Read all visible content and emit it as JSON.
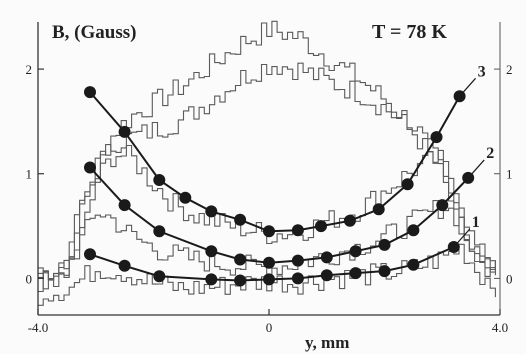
{
  "chart_data": {
    "type": "line",
    "ylabel": "B, (Gauss)",
    "xlabel": "y, mm",
    "annotation": "T = 78 K",
    "xlim": [
      -4.0,
      4.0
    ],
    "ylim": [
      -0.35,
      2.45
    ],
    "x_ticks": [
      {
        "value": -4.0,
        "label": "-4.0"
      },
      {
        "value": 0,
        "label": "0"
      },
      {
        "value": 4.0,
        "label": "4.0"
      }
    ],
    "y_ticks": [
      {
        "value": 0,
        "label": "0"
      },
      {
        "value": 1,
        "label": "1"
      },
      {
        "value": 2,
        "label": "2"
      }
    ],
    "colors": {
      "fit": "#1a1a1a",
      "measured": "#5a5a5a",
      "axes": "#333333"
    },
    "series": [
      {
        "name": "3",
        "kind": "fit",
        "points": [
          [
            -3.1,
            1.78
          ],
          [
            -2.5,
            1.4
          ],
          [
            -1.9,
            0.94
          ],
          [
            -1.45,
            0.77
          ],
          [
            -1.0,
            0.64
          ],
          [
            -0.5,
            0.56
          ],
          [
            0.0,
            0.45
          ],
          [
            0.5,
            0.46
          ],
          [
            0.9,
            0.5
          ],
          [
            1.4,
            0.55
          ],
          [
            1.9,
            0.66
          ],
          [
            2.4,
            0.9
          ],
          [
            2.9,
            1.35
          ],
          [
            3.3,
            1.74
          ]
        ]
      },
      {
        "name": "2",
        "kind": "fit",
        "points": [
          [
            -3.1,
            1.06
          ],
          [
            -2.5,
            0.7
          ],
          [
            -1.9,
            0.45
          ],
          [
            -1.0,
            0.26
          ],
          [
            -0.5,
            0.18
          ],
          [
            0.0,
            0.15
          ],
          [
            0.5,
            0.17
          ],
          [
            1.0,
            0.2
          ],
          [
            1.5,
            0.26
          ],
          [
            2.0,
            0.32
          ],
          [
            2.5,
            0.46
          ],
          [
            3.0,
            0.7
          ],
          [
            3.45,
            0.96
          ]
        ]
      },
      {
        "name": "1",
        "kind": "fit",
        "points": [
          [
            -3.1,
            0.23
          ],
          [
            -2.5,
            0.12
          ],
          [
            -1.9,
            0.02
          ],
          [
            -1.0,
            -0.01
          ],
          [
            -0.5,
            -0.02
          ],
          [
            0.0,
            -0.01
          ],
          [
            0.5,
            0.0
          ],
          [
            1.0,
            0.03
          ],
          [
            1.5,
            0.05
          ],
          [
            2.0,
            0.07
          ],
          [
            2.5,
            0.13
          ],
          [
            3.2,
            0.3
          ]
        ]
      },
      {
        "name": "",
        "kind": "measured",
        "points": [
          [
            -4.0,
            0.05
          ],
          [
            -3.7,
            0.08
          ],
          [
            -3.5,
            0.2
          ],
          [
            -3.3,
            0.7
          ],
          [
            -3.0,
            1.1
          ],
          [
            -2.7,
            1.4
          ],
          [
            -2.4,
            1.55
          ],
          [
            -2.0,
            1.68
          ],
          [
            -1.5,
            1.85
          ],
          [
            -1.0,
            2.05
          ],
          [
            -0.5,
            2.25
          ],
          [
            0.0,
            2.38
          ],
          [
            0.5,
            2.3
          ],
          [
            1.0,
            2.1
          ],
          [
            1.5,
            1.92
          ],
          [
            2.0,
            1.7
          ],
          [
            2.5,
            1.45
          ],
          [
            2.9,
            1.1
          ],
          [
            3.2,
            0.65
          ],
          [
            3.5,
            0.25
          ],
          [
            3.8,
            0.12
          ],
          [
            4.0,
            0.1
          ]
        ]
      },
      {
        "name": "",
        "kind": "measured",
        "points": [
          [
            -4.0,
            0.0
          ],
          [
            -3.7,
            0.03
          ],
          [
            -3.5,
            0.15
          ],
          [
            -3.3,
            0.6
          ],
          [
            -3.0,
            1.05
          ],
          [
            -2.7,
            1.3
          ],
          [
            -2.4,
            1.35
          ],
          [
            -2.0,
            1.42
          ],
          [
            -1.5,
            1.52
          ],
          [
            -1.0,
            1.72
          ],
          [
            -0.5,
            1.92
          ],
          [
            0.0,
            2.05
          ],
          [
            0.5,
            2.0
          ],
          [
            1.0,
            1.88
          ],
          [
            1.5,
            1.78
          ],
          [
            2.0,
            1.62
          ],
          [
            2.5,
            1.38
          ],
          [
            2.9,
            1.05
          ],
          [
            3.2,
            0.62
          ],
          [
            3.5,
            0.22
          ],
          [
            3.8,
            0.08
          ],
          [
            4.0,
            0.05
          ]
        ]
      },
      {
        "name": "",
        "kind": "measured",
        "points": [
          [
            -4.0,
            -0.02
          ],
          [
            -3.7,
            0.02
          ],
          [
            -3.5,
            0.1
          ],
          [
            -3.2,
            0.55
          ],
          [
            -3.0,
            0.95
          ],
          [
            -2.7,
            1.2
          ],
          [
            -2.4,
            1.15
          ],
          [
            -2.1,
            0.95
          ],
          [
            -1.7,
            0.72
          ],
          [
            -1.3,
            0.6
          ],
          [
            -1.0,
            0.55
          ],
          [
            -0.5,
            0.48
          ],
          [
            0.0,
            0.42
          ],
          [
            0.5,
            0.45
          ],
          [
            1.0,
            0.55
          ],
          [
            1.5,
            0.65
          ],
          [
            2.0,
            0.85
          ],
          [
            2.5,
            1.05
          ],
          [
            2.9,
            1.15
          ],
          [
            3.2,
            0.9
          ],
          [
            3.5,
            0.35
          ],
          [
            3.8,
            0.1
          ],
          [
            4.0,
            0.05
          ]
        ]
      },
      {
        "name": "",
        "kind": "measured",
        "points": [
          [
            -4.0,
            -0.05
          ],
          [
            -3.6,
            0.0
          ],
          [
            -3.3,
            0.35
          ],
          [
            -3.0,
            0.65
          ],
          [
            -2.7,
            0.55
          ],
          [
            -2.4,
            0.4
          ],
          [
            -2.0,
            0.28
          ],
          [
            -1.5,
            0.2
          ],
          [
            -1.0,
            0.15
          ],
          [
            -0.5,
            0.12
          ],
          [
            0.0,
            0.1
          ],
          [
            0.5,
            0.15
          ],
          [
            1.0,
            0.22
          ],
          [
            1.5,
            0.3
          ],
          [
            2.0,
            0.4
          ],
          [
            2.5,
            0.55
          ],
          [
            3.0,
            0.7
          ],
          [
            3.3,
            0.55
          ],
          [
            3.6,
            0.15
          ],
          [
            4.0,
            0.0
          ]
        ]
      },
      {
        "name": "",
        "kind": "measured",
        "points": [
          [
            -4.0,
            -0.15
          ],
          [
            -3.5,
            -0.1
          ],
          [
            -3.0,
            0.1
          ],
          [
            -2.5,
            0.05
          ],
          [
            -2.0,
            -0.05
          ],
          [
            -1.5,
            -0.1
          ],
          [
            -1.0,
            -0.08
          ],
          [
            -0.5,
            -0.05
          ],
          [
            0.0,
            -0.03
          ],
          [
            0.5,
            -0.04
          ],
          [
            1.0,
            0.0
          ],
          [
            1.5,
            0.02
          ],
          [
            2.0,
            0.05
          ],
          [
            2.5,
            0.1
          ],
          [
            3.0,
            0.2
          ],
          [
            3.3,
            0.3
          ],
          [
            3.6,
            0.05
          ],
          [
            4.0,
            -0.1
          ]
        ]
      }
    ]
  }
}
